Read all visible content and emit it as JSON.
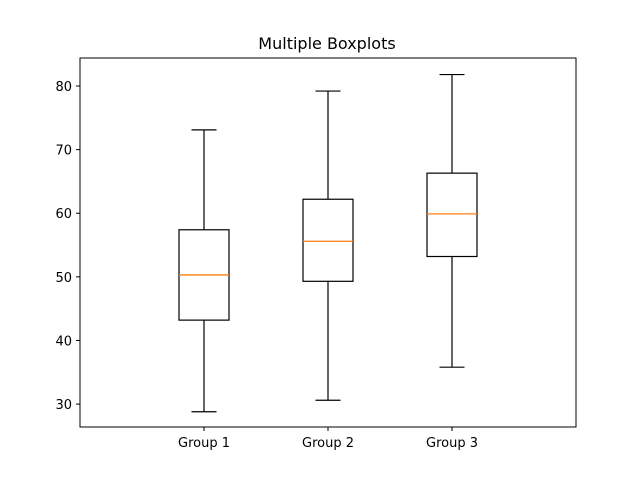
{
  "chart_data": {
    "type": "boxplot",
    "title": "Multiple Boxplots",
    "xlabel": "",
    "ylabel": "",
    "ylim": [
      26.4,
      84.4
    ],
    "yticks": [
      30,
      40,
      50,
      60,
      70,
      80
    ],
    "ytick_labels": [
      "30",
      "40",
      "50",
      "60",
      "70",
      "80"
    ],
    "grid": false,
    "legend": "none",
    "categories": [
      "Group 1",
      "Group 2",
      "Group 3"
    ],
    "series": [
      {
        "category": "Group 1",
        "whisker_low": 28.8,
        "q1": 43.2,
        "median": 50.3,
        "q3": 57.4,
        "whisker_high": 73.1
      },
      {
        "category": "Group 2",
        "whisker_low": 30.6,
        "q1": 49.3,
        "median": 55.6,
        "q3": 62.2,
        "whisker_high": 79.2
      },
      {
        "category": "Group 3",
        "whisker_low": 35.8,
        "q1": 53.2,
        "median": 59.9,
        "q3": 66.3,
        "whisker_high": 81.8
      }
    ],
    "colors": {
      "box": "#000000",
      "whisker": "#000000",
      "median": "#ff7f0e",
      "frame": "#000000"
    }
  }
}
